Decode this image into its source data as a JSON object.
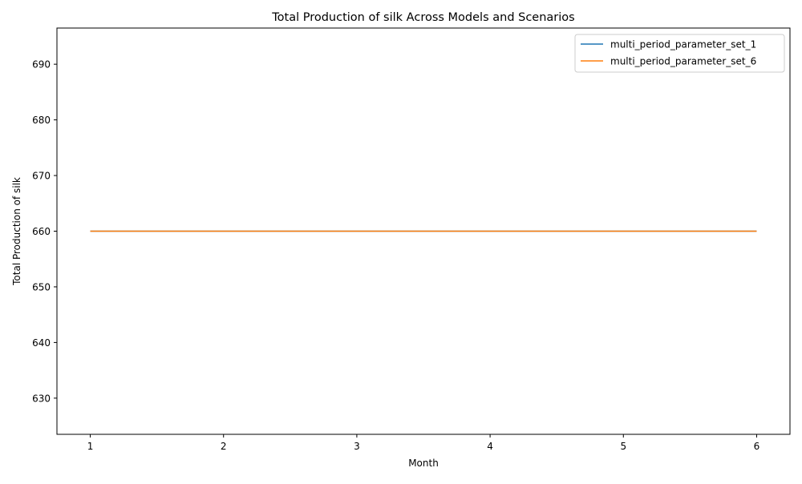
{
  "chart_data": {
    "type": "line",
    "title": "Total Production of silk Across Models and Scenarios",
    "xlabel": "Month",
    "ylabel": "Total Production of silk",
    "x": [
      1,
      2,
      3,
      4,
      5,
      6
    ],
    "xticks": [
      1,
      2,
      3,
      4,
      5,
      6
    ],
    "yticks": [
      630,
      640,
      650,
      660,
      670,
      680,
      690
    ],
    "xlim": [
      0.75,
      6.25
    ],
    "ylim": [
      623.5,
      696.5
    ],
    "grid": false,
    "legend_position": "top-right",
    "series": [
      {
        "name": "multi_period_parameter_set_1",
        "color": "#1f77b4",
        "values": [
          660,
          660,
          660,
          660,
          660,
          660
        ]
      },
      {
        "name": "multi_period_parameter_set_6",
        "color": "#ff7f0e",
        "values": [
          660,
          660,
          660,
          660,
          660,
          660
        ]
      }
    ]
  }
}
